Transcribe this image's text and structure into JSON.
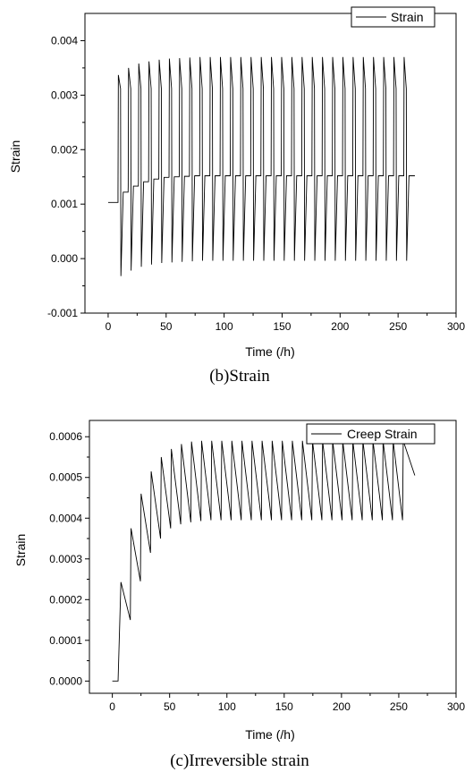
{
  "chart_data": [
    {
      "type": "line",
      "caption": "(b)Strain",
      "xlabel": "Time (/h)",
      "ylabel": "Strain",
      "xlim": [
        -20,
        300
      ],
      "ylim": [
        -0.001,
        0.0045
      ],
      "xticks": [
        "0",
        "50",
        "100",
        "150",
        "200",
        "250",
        "300"
      ],
      "yticks": [
        "-0.001",
        "0.000",
        "0.001",
        "0.002",
        "0.003",
        "0.004"
      ],
      "legend": "top-right",
      "series": [
        {
          "name": "Strain",
          "cycle_period_h": 8.8,
          "hold_start_h": 0,
          "hold_end_h": 8.5,
          "initial_value": 0.00103,
          "peak_values": [
            0.00337,
            0.0035,
            0.00358,
            0.00362,
            0.00365,
            0.00367,
            0.00368,
            0.00369,
            0.0037,
            0.0037,
            0.0037,
            0.0037,
            0.0037,
            0.0037,
            0.0037,
            0.0037,
            0.0037,
            0.0037,
            0.0037,
            0.0037,
            0.0037,
            0.0037,
            0.0037,
            0.0037,
            0.0037,
            0.0037,
            0.0037,
            0.0037,
            0.0037
          ],
          "peak_decay_to": 0.00312,
          "trough_values": [
            -0.00032,
            -0.00022,
            -0.00015,
            -0.00011,
            -8e-05,
            -7e-05,
            -6e-05,
            -5e-05,
            -4e-05,
            -4e-05,
            -4e-05,
            -4e-05,
            -4e-05,
            -4e-05,
            -4e-05,
            -4e-05,
            -4e-05,
            -4e-05,
            -4e-05,
            -4e-05,
            -4e-05,
            -4e-05,
            -4e-05,
            -4e-05,
            -4e-05,
            -4e-05,
            -4e-05,
            -4e-05,
            -4e-05
          ],
          "midline_values": [
            0.00122,
            0.00133,
            0.00141,
            0.00146,
            0.00149,
            0.0015,
            0.00151,
            0.00152,
            0.00152,
            0.00152,
            0.00152,
            0.00152,
            0.00152,
            0.00152,
            0.00152,
            0.00152,
            0.00152,
            0.00152,
            0.00152,
            0.00152,
            0.00152,
            0.00152,
            0.00152,
            0.00152,
            0.00152,
            0.00152,
            0.00152,
            0.00152,
            0.00152
          ],
          "end_time": 264.5
        }
      ]
    },
    {
      "type": "line",
      "caption": "(c)Irreversible strain",
      "xlabel": "Time (/h)",
      "ylabel": "Strain",
      "xlim": [
        -20,
        300
      ],
      "ylim": [
        -3e-05,
        0.00064
      ],
      "xticks": [
        "0",
        "50",
        "100",
        "150",
        "200",
        "250",
        "300"
      ],
      "yticks": [
        "0.0000",
        "0.0001",
        "0.0002",
        "0.0003",
        "0.0004",
        "0.0005",
        "0.0006"
      ],
      "legend": "top-right",
      "series": [
        {
          "name": "Creep Strain",
          "initial_hold": [
            [
              0,
              0.0
            ],
            [
              5,
              0.0
            ]
          ],
          "cycle_period_h": 8.8,
          "first_peak_time": 7.5,
          "peak_values": [
            0.000243,
            0.000375,
            0.00046,
            0.000515,
            0.00055,
            0.00057,
            0.000582,
            0.000588,
            0.00059,
            0.00059,
            0.00059,
            0.00059,
            0.00059,
            0.00059,
            0.00059,
            0.00059,
            0.00059,
            0.00059,
            0.00059,
            0.00059,
            0.00059,
            0.00059,
            0.00059,
            0.00059,
            0.00059,
            0.00059,
            0.00059,
            0.00059,
            0.00059
          ],
          "trough_values": [
            0.00015,
            0.000245,
            0.000315,
            0.00035,
            0.000375,
            0.000385,
            0.00039,
            0.000393,
            0.000395,
            0.000395,
            0.000395,
            0.000395,
            0.000395,
            0.000395,
            0.000395,
            0.000395,
            0.000395,
            0.000395,
            0.000395,
            0.000395,
            0.000395,
            0.000395,
            0.000395,
            0.000395,
            0.000395,
            0.000395,
            0.000395,
            0.000395
          ],
          "end_point": [
            264,
            0.000505
          ]
        }
      ]
    }
  ]
}
